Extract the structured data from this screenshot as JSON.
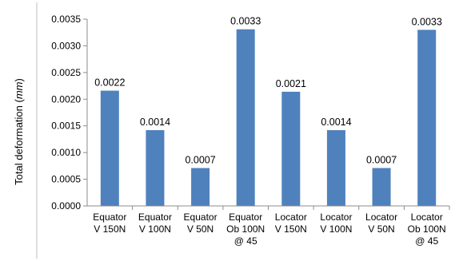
{
  "chart_data": {
    "type": "bar",
    "categories": [
      [
        "Equator",
        "V 150N"
      ],
      [
        "Equator",
        "V 100N"
      ],
      [
        "Equator",
        "V 50N"
      ],
      [
        "Equator",
        "Ob 100N",
        "@ 45"
      ],
      [
        "Locator",
        "V 150N"
      ],
      [
        "Locator",
        "V 100N"
      ],
      [
        "Locator",
        "V 50N"
      ],
      [
        "Locator",
        "Ob 100N",
        "@ 45"
      ]
    ],
    "values": [
      0.00216,
      0.00142,
      0.00071,
      0.00331,
      0.00214,
      0.00142,
      0.00071,
      0.0033
    ],
    "data_labels": [
      "0.0022",
      "0.0014",
      "0.0007",
      "0.0033",
      "0.0021",
      "0.0014",
      "0.0007",
      "0.0033"
    ],
    "title": "",
    "xlabel": "",
    "ylabel": "Total deformation",
    "ylabel_unit": "mm",
    "ylim": [
      0,
      0.0035
    ],
    "yticks": [
      0,
      0.0005,
      0.001,
      0.0015,
      0.002,
      0.0025,
      0.003,
      0.0035
    ],
    "ytick_labels": [
      "0.0000",
      "0.0005",
      "0.0010",
      "0.0015",
      "0.0020",
      "0.0025",
      "0.0030",
      "0.0035"
    ],
    "grid": false,
    "legend": "none",
    "bar_color": "#4F81BD"
  }
}
